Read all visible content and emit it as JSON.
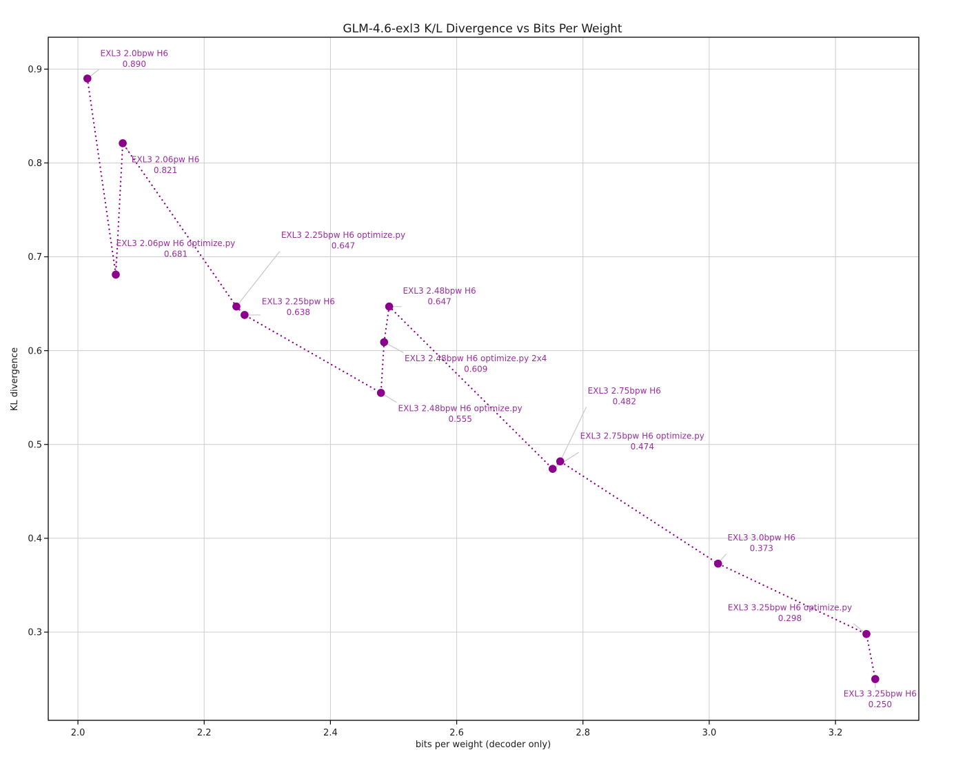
{
  "chart_data": {
    "type": "scatter",
    "title": "GLM-4.6-exl3 K/L Divergence vs Bits Per Weight",
    "xlabel": "bits per weight (decoder only)",
    "ylabel": "KL divergence",
    "xlim": [
      1.953,
      3.332
    ],
    "ylim": [
      0.206,
      0.934
    ],
    "xticks": [
      {
        "v": 2.0,
        "label": "2.0"
      },
      {
        "v": 2.2,
        "label": "2.2"
      },
      {
        "v": 2.4,
        "label": "2.4"
      },
      {
        "v": 2.6,
        "label": "2.6"
      },
      {
        "v": 2.8,
        "label": "2.8"
      },
      {
        "v": 3.0,
        "label": "3.0"
      },
      {
        "v": 3.2,
        "label": "3.2"
      }
    ],
    "yticks": [
      {
        "v": 0.3,
        "label": "0.3"
      },
      {
        "v": 0.4,
        "label": "0.4"
      },
      {
        "v": 0.5,
        "label": "0.5"
      },
      {
        "v": 0.6,
        "label": "0.6"
      },
      {
        "v": 0.7,
        "label": "0.7"
      },
      {
        "v": 0.8,
        "label": "0.8"
      },
      {
        "v": 0.9,
        "label": "0.9"
      }
    ],
    "grid": true,
    "line_style": "dotted",
    "legend": "none",
    "colors": {
      "series": "#8B008B",
      "annotation_text": "#9B2DA0",
      "grid": "#cccccc",
      "leader_line": "#c8c8c8",
      "axis": "#000000"
    },
    "series": [
      {
        "name": "EXL3 2.0bpw H6",
        "bpw": 2.015,
        "kl": 0.89,
        "value_label": "0.890",
        "offset": [
          68,
          -29
        ]
      },
      {
        "name": "EXL3 2.06pw H6 optimize.py",
        "bpw": 2.06,
        "kl": 0.681,
        "value_label": "0.681",
        "offset": [
          87,
          -38
        ]
      },
      {
        "name": "EXL3 2.06pw H6",
        "bpw": 2.071,
        "kl": 0.821,
        "value_label": "0.821",
        "offset": [
          62,
          31
        ]
      },
      {
        "name": "EXL3 2.25bpw H6 optimize.py",
        "bpw": 2.251,
        "kl": 0.647,
        "value_label": "0.647",
        "offset": [
          155,
          -96
        ]
      },
      {
        "name": "EXL3 2.25bpw H6",
        "bpw": 2.264,
        "kl": 0.638,
        "value_label": "0.638",
        "offset": [
          78,
          -12
        ]
      },
      {
        "name": "EXL3 2.48bpw H6 optimize.py",
        "bpw": 2.48,
        "kl": 0.555,
        "value_label": "0.555",
        "offset": [
          115,
          30
        ]
      },
      {
        "name": "EXL3 2.48bpw H6 optimize.py 2x4",
        "bpw": 2.485,
        "kl": 0.609,
        "value_label": "0.609",
        "offset": [
          133,
          31
        ]
      },
      {
        "name": "EXL3 2.48bpw H6",
        "bpw": 2.493,
        "kl": 0.647,
        "value_label": "0.647",
        "offset": [
          73,
          -15
        ]
      },
      {
        "name": "EXL3 2.75bpw H6 optimize.py",
        "bpw": 2.752,
        "kl": 0.474,
        "value_label": "0.474",
        "offset": [
          130,
          -40
        ]
      },
      {
        "name": "EXL3 2.75bpw H6",
        "bpw": 2.764,
        "kl": 0.482,
        "value_label": "0.482",
        "offset": [
          93,
          -95
        ]
      },
      {
        "name": "EXL3 3.0bpw H6",
        "bpw": 3.014,
        "kl": 0.373,
        "value_label": "0.373",
        "offset": [
          63,
          -30
        ]
      },
      {
        "name": "EXL3 3.25bpw H6 optimize.py",
        "bpw": 3.249,
        "kl": 0.298,
        "value_label": "0.298",
        "offset": [
          -111,
          -31
        ]
      },
      {
        "name": "EXL3 3.25bpw H6",
        "bpw": 3.263,
        "kl": 0.25,
        "value_label": "0.250",
        "offset": [
          7,
          29
        ]
      }
    ]
  }
}
